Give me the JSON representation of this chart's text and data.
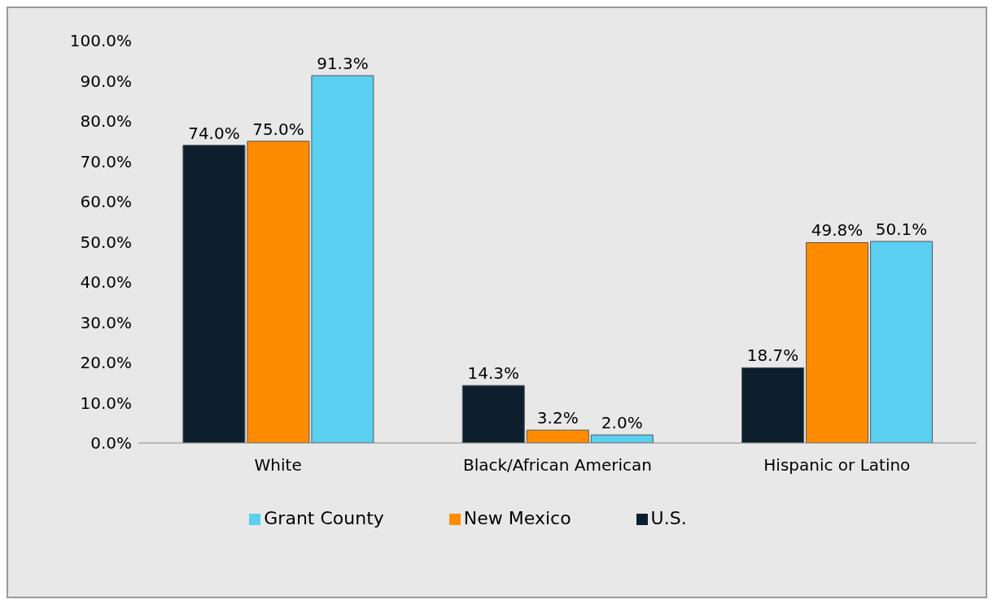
{
  "chart_data": {
    "type": "bar",
    "categories": [
      "White",
      "Black/African American",
      "Hispanic or Latino"
    ],
    "series": [
      {
        "name": "U.S.",
        "color": "#0d1f2d",
        "values": [
          74.0,
          14.3,
          18.7
        ],
        "value_labels": [
          "74.0%",
          "14.3%",
          "18.7%"
        ]
      },
      {
        "name": "New Mexico",
        "color": "#ff8c00",
        "values": [
          75.0,
          3.2,
          49.8
        ],
        "value_labels": [
          "75.0%",
          "3.2%",
          "49.8%"
        ]
      },
      {
        "name": "Grant County",
        "color": "#5bcfef",
        "values": [
          91.3,
          2.0,
          50.1
        ],
        "value_labels": [
          "91.3%",
          "2.0%",
          "50.1%"
        ]
      }
    ],
    "ylim": [
      0,
      100
    ],
    "yticks": [
      {
        "value": 0,
        "label": "0.0%"
      },
      {
        "value": 10,
        "label": "10.0%"
      },
      {
        "value": 20,
        "label": "20.0%"
      },
      {
        "value": 30,
        "label": "30.0%"
      },
      {
        "value": 40,
        "label": "40.0%"
      },
      {
        "value": 50,
        "label": "50.0%"
      },
      {
        "value": 60,
        "label": "60.0%"
      },
      {
        "value": 70,
        "label": "70.0%"
      },
      {
        "value": 80,
        "label": "80.0%"
      },
      {
        "value": 90,
        "label": "90.0%"
      },
      {
        "value": 100,
        "label": "100.0%"
      }
    ],
    "legend": "bottom",
    "grid": false
  }
}
